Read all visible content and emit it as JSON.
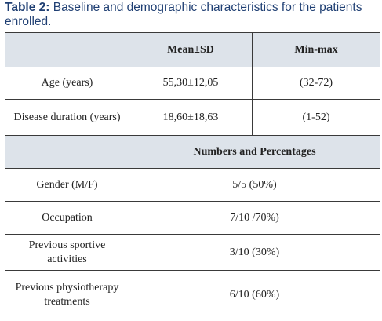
{
  "caption": {
    "label": "Table 2:",
    "text": " Baseline and demographic characteristics for the patients enrolled."
  },
  "table": {
    "header": {
      "col1": "",
      "col2": "Mean±SD",
      "col3": "Min-max"
    },
    "rows_stats": [
      {
        "label": "Age (years)",
        "mean_sd": "55,30±12,05",
        "min_max": "(32-72)"
      },
      {
        "label": "Disease duration (years)",
        "mean_sd": "18,60±18,63",
        "min_max": "(1-52)"
      }
    ],
    "subheader": {
      "col1": "",
      "col2": "Numbers and Percentages"
    },
    "rows_counts": [
      {
        "label": "Gender (M/F)",
        "value": "5/5 (50%)"
      },
      {
        "label": "Occupation",
        "value": "7/10 /70%)"
      },
      {
        "label": "Previous sportive activities",
        "value": "3/10 (30%)"
      },
      {
        "label": "Previous physiotherapy treatments",
        "value": "6/10 (60%)"
      }
    ]
  }
}
